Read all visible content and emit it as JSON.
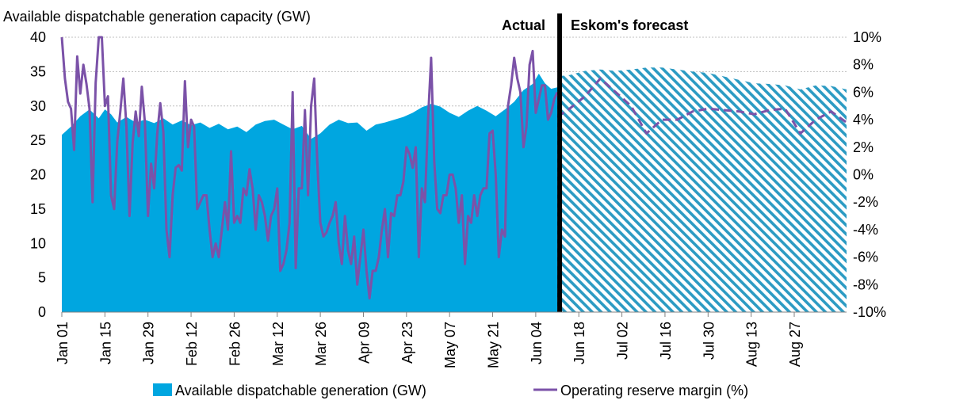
{
  "chart_data": {
    "type": "area",
    "title": "Available dispatchable generation capacity (GW)",
    "sections": {
      "actual": "Actual",
      "forecast": "Eskom's forecast"
    },
    "x_tick_labels": [
      "Jan 01",
      "Jan 15",
      "Jan 29",
      "Feb 12",
      "Feb 26",
      "Mar 12",
      "Mar 26",
      "Apr 09",
      "Apr 23",
      "May 07",
      "May 21",
      "Jun 04",
      "Jun 18",
      "Jul 02",
      "Jul 16",
      "Jul 30",
      "Aug 13",
      "Aug 27"
    ],
    "x_range_days": [
      0,
      255
    ],
    "forecast_start_day": 161,
    "y_left": {
      "min": 0,
      "max": 40,
      "step": 5,
      "ticks": [
        "0",
        "5",
        "10",
        "15",
        "20",
        "25",
        "30",
        "35",
        "40"
      ]
    },
    "y_right": {
      "min": -10,
      "max": 10,
      "step": 2,
      "ticks": [
        "-10%",
        "-8%",
        "-6%",
        "-4%",
        "-2%",
        "0%",
        "2%",
        "4%",
        "6%",
        "8%",
        "10%"
      ]
    },
    "grid": "horizontal",
    "legend_position": "bottom",
    "series": [
      {
        "name": "Available dispatchable generation (GW)",
        "kind": "area",
        "axis": "left",
        "color": "#00A6E0",
        "actual_points": [
          [
            0,
            25.8
          ],
          [
            3,
            27
          ],
          [
            6,
            28.5
          ],
          [
            9,
            29.5
          ],
          [
            12,
            28.2
          ],
          [
            14,
            29.5
          ],
          [
            16,
            28.8
          ],
          [
            18,
            27.6
          ],
          [
            21,
            28.4
          ],
          [
            24,
            27.6
          ],
          [
            27,
            28
          ],
          [
            30,
            27.5
          ],
          [
            33,
            28.2
          ],
          [
            36,
            27.3
          ],
          [
            39,
            27.9
          ],
          [
            42,
            27.2
          ],
          [
            45,
            27.6
          ],
          [
            48,
            26.8
          ],
          [
            51,
            27.4
          ],
          [
            54,
            26.6
          ],
          [
            57,
            27
          ],
          [
            60,
            26.2
          ],
          [
            63,
            27.3
          ],
          [
            66,
            27.8
          ],
          [
            69,
            28
          ],
          [
            72,
            27.3
          ],
          [
            75,
            26.6
          ],
          [
            78,
            27.1
          ],
          [
            81,
            25.2
          ],
          [
            84,
            26
          ],
          [
            87,
            27.3
          ],
          [
            90,
            28
          ],
          [
            93,
            27.5
          ],
          [
            96,
            27.6
          ],
          [
            99,
            26.4
          ],
          [
            102,
            27.3
          ],
          [
            105,
            27.6
          ],
          [
            108,
            28
          ],
          [
            111,
            28.4
          ],
          [
            114,
            29
          ],
          [
            117,
            29.8
          ],
          [
            120,
            30.3
          ],
          [
            123,
            29.9
          ],
          [
            126,
            29
          ],
          [
            129,
            28.4
          ],
          [
            132,
            29.3
          ],
          [
            135,
            30
          ],
          [
            138,
            29.3
          ],
          [
            141,
            28.5
          ],
          [
            144,
            29.5
          ],
          [
            147,
            30.6
          ],
          [
            150,
            32.3
          ],
          [
            153,
            33.2
          ],
          [
            155,
            34.7
          ],
          [
            157,
            33.3
          ],
          [
            159,
            32.5
          ],
          [
            161,
            32.7
          ]
        ],
        "forecast_points": [
          [
            161,
            34.3
          ],
          [
            165,
            34.5
          ],
          [
            170,
            35.1
          ],
          [
            175,
            35.3
          ],
          [
            180,
            35.1
          ],
          [
            185,
            35.3
          ],
          [
            190,
            35.6
          ],
          [
            195,
            35.6
          ],
          [
            200,
            35.3
          ],
          [
            205,
            35
          ],
          [
            210,
            34.8
          ],
          [
            215,
            34.3
          ],
          [
            220,
            33.8
          ],
          [
            225,
            33.3
          ],
          [
            230,
            33.2
          ],
          [
            235,
            33
          ],
          [
            240,
            32.4
          ],
          [
            245,
            33
          ],
          [
            250,
            32.9
          ],
          [
            255,
            32.4
          ]
        ]
      },
      {
        "name": "Operating reserve margin (%)",
        "kind": "line",
        "axis": "right",
        "color": "#7B52A8",
        "actual_points": [
          [
            0,
            10
          ],
          [
            1,
            7
          ],
          [
            2,
            5.3
          ],
          [
            3,
            4.8
          ],
          [
            4,
            1.8
          ],
          [
            5,
            8.6
          ],
          [
            6,
            5.9
          ],
          [
            7,
            8
          ],
          [
            8,
            6.6
          ],
          [
            9,
            4.8
          ],
          [
            10,
            -2
          ],
          [
            11,
            6.7
          ],
          [
            12,
            10
          ],
          [
            13,
            10
          ],
          [
            14,
            5
          ],
          [
            15,
            5.7
          ],
          [
            16,
            -1.5
          ],
          [
            17,
            -2.5
          ],
          [
            18,
            2.4
          ],
          [
            19,
            4.6
          ],
          [
            20,
            7
          ],
          [
            21,
            3.5
          ],
          [
            22,
            -3
          ],
          [
            23,
            2.3
          ],
          [
            24,
            4.6
          ],
          [
            25,
            2.8
          ],
          [
            26,
            6.4
          ],
          [
            27,
            3.8
          ],
          [
            28,
            -3
          ],
          [
            29,
            0.8
          ],
          [
            30,
            -1
          ],
          [
            31,
            3
          ],
          [
            32,
            5.2
          ],
          [
            33,
            3.1
          ],
          [
            34,
            -4
          ],
          [
            35,
            -6
          ],
          [
            36,
            -1.5
          ],
          [
            37,
            0.5
          ],
          [
            38,
            0.7
          ],
          [
            39,
            0.3
          ],
          [
            40,
            6.8
          ],
          [
            41,
            2
          ],
          [
            42,
            4
          ],
          [
            43,
            3.5
          ],
          [
            44,
            -2.5
          ],
          [
            45,
            -2
          ],
          [
            46,
            -1.5
          ],
          [
            47,
            -1.5
          ],
          [
            48,
            -4
          ],
          [
            49,
            -6
          ],
          [
            50,
            -5
          ],
          [
            51,
            -6
          ],
          [
            52,
            -4
          ],
          [
            53,
            -2
          ],
          [
            54,
            -4
          ],
          [
            55,
            1.7
          ],
          [
            56,
            -3.5
          ],
          [
            57,
            -3
          ],
          [
            58,
            -3.5
          ],
          [
            59,
            -1
          ],
          [
            60,
            -1.5
          ],
          [
            61,
            0.4
          ],
          [
            62,
            -1
          ],
          [
            63,
            -4
          ],
          [
            64,
            -1.5
          ],
          [
            65,
            -2
          ],
          [
            66,
            -3
          ],
          [
            67,
            -4.8
          ],
          [
            68,
            -3
          ],
          [
            69,
            -2.5
          ],
          [
            70,
            -1
          ],
          [
            71,
            -7
          ],
          [
            72,
            -6.5
          ],
          [
            73,
            -5.5
          ],
          [
            74,
            -3.5
          ],
          [
            75,
            6
          ],
          [
            76,
            -6.8
          ],
          [
            77,
            -1
          ],
          [
            78,
            -1
          ],
          [
            79,
            4.7
          ],
          [
            80,
            -1.5
          ],
          [
            81,
            5
          ],
          [
            82,
            7
          ],
          [
            83,
            1
          ],
          [
            84,
            -3.5
          ],
          [
            85,
            -4.5
          ],
          [
            86,
            -4.2
          ],
          [
            87,
            -3.5
          ],
          [
            88,
            -3
          ],
          [
            89,
            -2
          ],
          [
            90,
            -5
          ],
          [
            91,
            -6.5
          ],
          [
            92,
            -3
          ],
          [
            93,
            -5.5
          ],
          [
            94,
            -6.5
          ],
          [
            95,
            -4.5
          ],
          [
            96,
            -8
          ],
          [
            97,
            -6
          ],
          [
            98,
            -4
          ],
          [
            99,
            -7
          ],
          [
            100,
            -9
          ],
          [
            101,
            -7
          ],
          [
            102,
            -7
          ],
          [
            103,
            -6
          ],
          [
            104,
            -4
          ],
          [
            105,
            -2.5
          ],
          [
            106,
            -6
          ],
          [
            107,
            -2.8
          ],
          [
            108,
            -3
          ],
          [
            109,
            -1.5
          ],
          [
            110,
            -1.5
          ],
          [
            111,
            -0.5
          ],
          [
            112,
            2
          ],
          [
            113,
            1.5
          ],
          [
            114,
            0.5
          ],
          [
            115,
            2
          ],
          [
            116,
            -6
          ],
          [
            117,
            -1
          ],
          [
            118,
            -2
          ],
          [
            119,
            4
          ],
          [
            120,
            8.5
          ],
          [
            121,
            1
          ],
          [
            122,
            -2.5
          ],
          [
            123,
            -2.8
          ],
          [
            124,
            -1.5
          ],
          [
            125,
            -1.5
          ],
          [
            126,
            0
          ],
          [
            127,
            0
          ],
          [
            128,
            -1
          ],
          [
            129,
            -3.5
          ],
          [
            130,
            -1.5
          ],
          [
            131,
            -6.5
          ],
          [
            132,
            -3
          ],
          [
            133,
            -3.5
          ],
          [
            134,
            -1.5
          ],
          [
            135,
            -3
          ],
          [
            136,
            -1.5
          ],
          [
            137,
            -1
          ],
          [
            138,
            -1
          ],
          [
            139,
            3
          ],
          [
            140,
            3.2
          ],
          [
            141,
            0
          ],
          [
            142,
            -6
          ],
          [
            143,
            -4
          ],
          [
            144,
            -4.5
          ],
          [
            145,
            5
          ],
          [
            146,
            6.5
          ],
          [
            147,
            8.5
          ],
          [
            148,
            7
          ],
          [
            149,
            6
          ],
          [
            150,
            2
          ],
          [
            151,
            3.5
          ],
          [
            152,
            8
          ],
          [
            153,
            9
          ],
          [
            154,
            4.5
          ],
          [
            155,
            5.5
          ],
          [
            156,
            6.5
          ],
          [
            157,
            6.5
          ],
          [
            158,
            4
          ],
          [
            159,
            4.5
          ],
          [
            160,
            5.5
          ],
          [
            161,
            6
          ]
        ],
        "forecast_points": [
          [
            161,
            4.2
          ],
          [
            165,
            4.8
          ],
          [
            170,
            5.7
          ],
          [
            175,
            7
          ],
          [
            180,
            6
          ],
          [
            185,
            5
          ],
          [
            190,
            3
          ],
          [
            195,
            4
          ],
          [
            200,
            4
          ],
          [
            205,
            4.6
          ],
          [
            210,
            4.8
          ],
          [
            215,
            4.7
          ],
          [
            220,
            4.6
          ],
          [
            225,
            4.4
          ],
          [
            230,
            4.7
          ],
          [
            235,
            4.8
          ],
          [
            240,
            3
          ],
          [
            245,
            4
          ],
          [
            250,
            4.6
          ],
          [
            255,
            3.8
          ]
        ]
      }
    ]
  }
}
